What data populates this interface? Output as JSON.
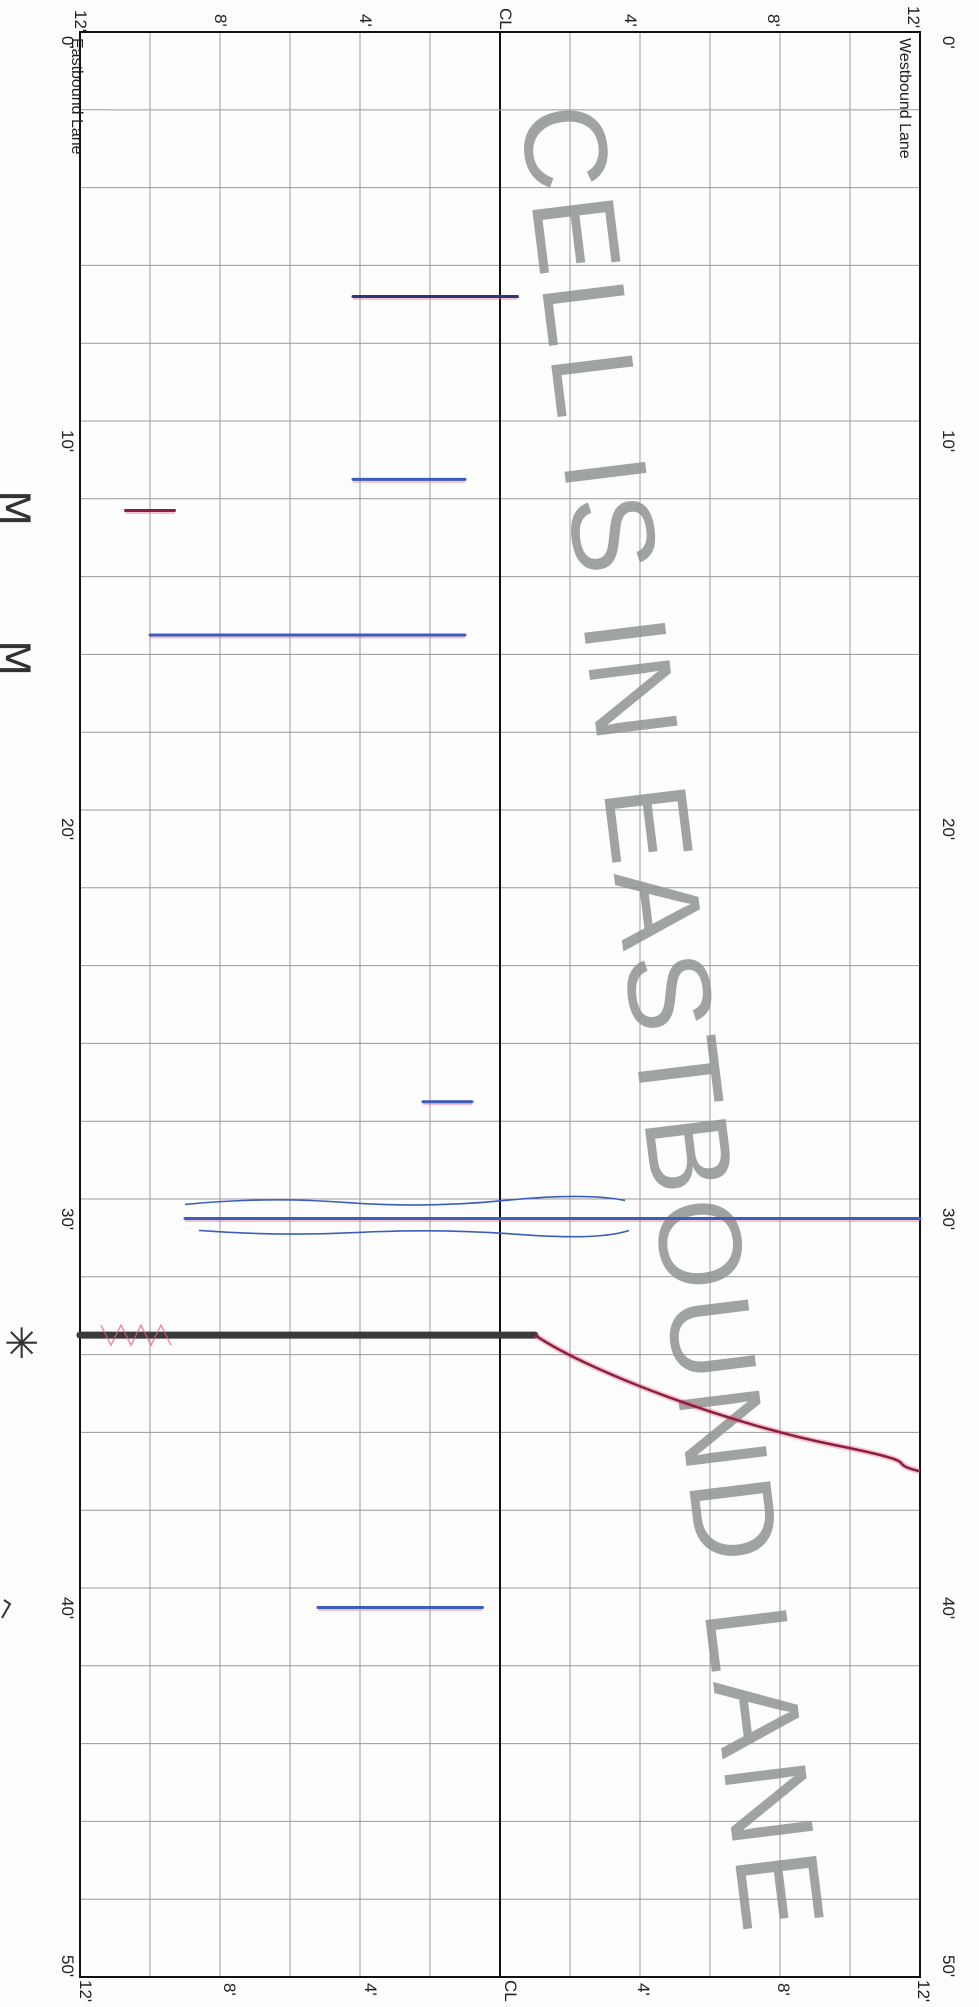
{
  "sheet": {
    "lane_left_label": "Eastbound Lane",
    "lane_right_label": "Westbound Lane",
    "watermark": "CELL IS IN EASTBOUND LANE",
    "top_scale": [
      "12'",
      "8'",
      "4'",
      "CL",
      "4'",
      "8'",
      "12'"
    ],
    "bottom_scale": [
      "12'",
      "8'",
      "4'",
      "CL",
      "4'",
      "8'",
      "12'"
    ],
    "distance_labels": [
      "0'",
      "10'",
      "20'",
      "30'",
      "40'",
      "50'"
    ],
    "margin_marks": [
      "M",
      "M",
      "✳"
    ],
    "colors": {
      "grid": "#9a9a9a",
      "border": "#111111",
      "watermark": "#8f948f",
      "crack_blue": "#3b5fb8",
      "crack_red": "#8a2040",
      "highlight_pink": "#e85a7a",
      "patch": "#3a3a3a"
    }
  },
  "distresses": [
    {
      "type": "transverse-crack",
      "distance_ft": 6.8,
      "offset_from_edge_ft": [
        7.8,
        12.5
      ],
      "color": "dark-blue"
    },
    {
      "type": "transverse-crack",
      "distance_ft": 11.5,
      "offset_from_edge_ft": [
        7.8,
        11.0
      ],
      "color": "blue"
    },
    {
      "type": "transverse-crack",
      "distance_ft": 12.3,
      "offset_from_edge_ft": [
        1.3,
        2.7
      ],
      "color": "red"
    },
    {
      "type": "transverse-crack",
      "distance_ft": 15.5,
      "offset_from_edge_ft": [
        2.0,
        11.0
      ],
      "color": "blue-red"
    },
    {
      "type": "transverse-crack",
      "distance_ft": 27.5,
      "offset_from_edge_ft": [
        9.8,
        11.2
      ],
      "color": "blue"
    },
    {
      "type": "transverse-crack",
      "distance_ft": 30.5,
      "offset_from_edge_ft": [
        3.0,
        24.0
      ],
      "color": "blue"
    },
    {
      "type": "joint",
      "distance_ft": 33.5,
      "offset_from_edge_ft": [
        0.0,
        13.0
      ],
      "color": "black"
    },
    {
      "type": "diagonal-crack",
      "distance_ft": [
        33.5,
        37.0
      ],
      "offset_from_edge_ft": [
        13.0,
        24.0
      ],
      "color": "dark-red"
    },
    {
      "type": "transverse-crack",
      "distance_ft": 40.5,
      "offset_from_edge_ft": [
        6.8,
        11.5
      ],
      "color": "blue"
    }
  ]
}
